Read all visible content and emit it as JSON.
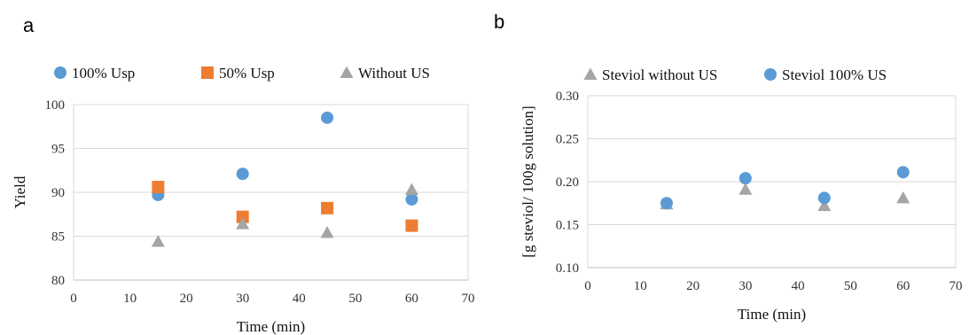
{
  "panels": [
    {
      "letter": "a",
      "chart_data": {
        "type": "scatter",
        "xlabel": "Time (min)",
        "ylabel": "Yield",
        "xlim": [
          0,
          70
        ],
        "ylim": [
          80,
          100
        ],
        "xticks": [
          "0",
          "10",
          "20",
          "30",
          "40",
          "50",
          "60",
          "70"
        ],
        "yticks": [
          "80",
          "85",
          "90",
          "95",
          "100"
        ],
        "grid": "horizontal",
        "legend_position": "top",
        "series": [
          {
            "name": "100% Usp",
            "color": "#5b9bd5",
            "marker": "circle",
            "x": [
              15,
              30,
              45,
              60
            ],
            "y": [
              89.7,
              92.1,
              98.5,
              89.2
            ]
          },
          {
            "name": "50% Usp",
            "color": "#ed7d31",
            "marker": "square",
            "x": [
              15,
              30,
              45,
              60
            ],
            "y": [
              90.6,
              87.2,
              88.2,
              86.2
            ]
          },
          {
            "name": "Without US",
            "color": "#a5a5a5",
            "marker": "triangle",
            "x": [
              15,
              30,
              45,
              60
            ],
            "y": [
              84.4,
              86.4,
              85.4,
              90.3
            ]
          }
        ]
      }
    },
    {
      "letter": "b",
      "chart_data": {
        "type": "scatter",
        "xlabel": "Time (min)",
        "ylabel": "[g steviol/ 100g solution]",
        "xlim": [
          0,
          70
        ],
        "ylim": [
          0.1,
          0.3
        ],
        "xticks": [
          "0",
          "10",
          "20",
          "30",
          "40",
          "50",
          "60",
          "70"
        ],
        "yticks": [
          "0.10",
          "0.15",
          "0.20",
          "0.25",
          "0.30"
        ],
        "grid": "horizontal",
        "legend_position": "top",
        "series": [
          {
            "name": "Steviol without US",
            "color": "#a5a5a5",
            "marker": "triangle",
            "x": [
              15,
              30,
              45,
              60
            ],
            "y": [
              0.174,
              0.191,
              0.172,
              0.181
            ]
          },
          {
            "name": "Steviol 100% US",
            "color": "#5b9bd5",
            "marker": "circle",
            "x": [
              15,
              30,
              45,
              60
            ],
            "y": [
              0.175,
              0.204,
              0.181,
              0.211
            ]
          }
        ]
      }
    }
  ]
}
